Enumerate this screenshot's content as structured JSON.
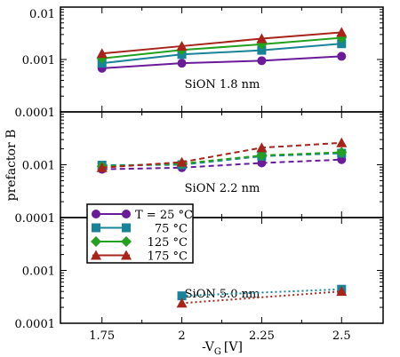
{
  "chart_data": {
    "type": "line",
    "ylabel": "prefactor B",
    "xlabel_main": "-V",
    "xlabel_sub": "G",
    "xlabel_unit": "[V]",
    "x_ticks": [
      "1.75",
      "2",
      "2.25",
      "2.5"
    ],
    "x_values": [
      1.75,
      2.0,
      2.25,
      2.5
    ],
    "xlim": [
      1.62,
      2.63
    ],
    "y_scale": "log",
    "ylim": [
      0.0001,
      0.01
    ],
    "y_ticks": [
      "0.01",
      "0.001",
      "0.0001"
    ],
    "grid": false,
    "legend_placement": "bottom-left of middle panel",
    "series_meta": [
      {
        "name": "T = 25 °C",
        "color": "#6a1b9a",
        "marker": "circle"
      },
      {
        "name": "75 °C",
        "color": "#17849a",
        "marker": "square"
      },
      {
        "name": "125 °C",
        "color": "#23a01f",
        "marker": "diamond"
      },
      {
        "name": "175 °C",
        "color": "#a8241a",
        "marker": "triangle"
      }
    ],
    "panels": [
      {
        "label": "SiON 1.8 nm",
        "line_style": "solid",
        "series": [
          {
            "values": [
              0.00068,
              0.00085,
              0.00095,
              0.00115
            ]
          },
          {
            "values": [
              0.00085,
              0.00125,
              0.0015,
              0.002
            ]
          },
          {
            "values": [
              0.00105,
              0.00152,
              0.00195,
              0.0026
            ]
          },
          {
            "values": [
              0.0013,
              0.0018,
              0.0025,
              0.0033
            ]
          }
        ]
      },
      {
        "label": "SiON 2.2 nm",
        "line_style": "dashed",
        "series": [
          {
            "values": [
              0.00082,
              0.00088,
              0.00108,
              0.00125
            ]
          },
          {
            "values": [
              0.00098,
              0.001,
              0.00145,
              0.00165
            ]
          },
          {
            "values": [
              0.00093,
              0.00105,
              0.0015,
              0.00172
            ]
          },
          {
            "values": [
              0.00088,
              0.00112,
              0.0021,
              0.0026
            ]
          }
        ]
      },
      {
        "label": "SiON 5.0 nm",
        "line_style": "dotted",
        "series": [
          {
            "values": [
              null,
              null,
              null,
              null
            ]
          },
          {
            "values": [
              null,
              0.00033,
              null,
              0.00044
            ]
          },
          {
            "values": [
              null,
              null,
              null,
              null
            ]
          },
          {
            "values": [
              null,
              0.00024,
              null,
              0.0004
            ]
          }
        ]
      }
    ]
  }
}
